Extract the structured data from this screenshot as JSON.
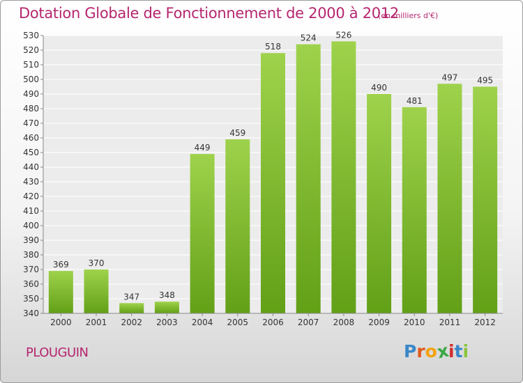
{
  "header": {
    "title": "Dotation Globale de Fonctionnement de 2000 à 2012",
    "unit": "(en milliers d'€)"
  },
  "footer": {
    "commune": "PLOUGUIN",
    "brand_letters": [
      "P",
      "r",
      "o",
      "x",
      "i",
      "t",
      "i"
    ],
    "brand_colors": [
      "#3a87c8",
      "#e05a1c",
      "#f2a20c",
      "#3aa844",
      "#d12d2d",
      "#3a87c8",
      "#8bc53f"
    ]
  },
  "colors": {
    "bar": "#7fbf2a",
    "text": "#b5266e"
  },
  "chart_data": {
    "type": "bar",
    "categories": [
      "2000",
      "2001",
      "2002",
      "2003",
      "2004",
      "2005",
      "2006",
      "2007",
      "2008",
      "2009",
      "2010",
      "2011",
      "2012"
    ],
    "values": [
      369,
      370,
      347,
      348,
      449,
      459,
      518,
      524,
      526,
      490,
      481,
      497,
      495
    ],
    "title": "Dotation Globale de Fonctionnement de 2000 à 2012",
    "subtitle": "(en milliers d'€)",
    "xlabel": "",
    "ylabel": "",
    "ylim": [
      340,
      530
    ],
    "yticks": [
      340,
      350,
      360,
      370,
      380,
      390,
      400,
      410,
      420,
      430,
      440,
      450,
      460,
      470,
      480,
      490,
      500,
      510,
      520,
      530
    ],
    "grid": true,
    "data_labels": true
  }
}
